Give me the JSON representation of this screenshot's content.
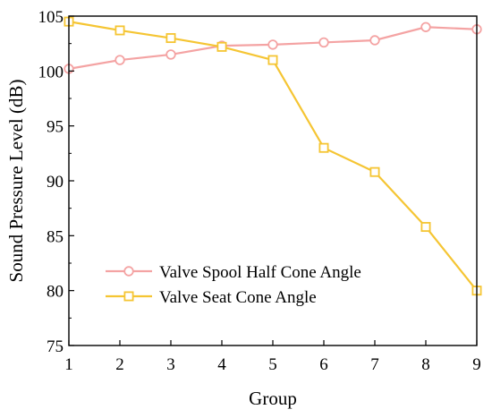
{
  "chart_data": {
    "type": "line",
    "xlabel": "Group",
    "ylabel": "Sound Pressure Level (dB)",
    "xlim": [
      1,
      9
    ],
    "ylim": [
      75,
      105
    ],
    "x": [
      1,
      2,
      3,
      4,
      5,
      6,
      7,
      8,
      9
    ],
    "xticks": [
      "1",
      "2",
      "3",
      "4",
      "5",
      "6",
      "7",
      "8",
      "9"
    ],
    "yticks": [
      "75",
      "80",
      "85",
      "90",
      "95",
      "100",
      "105"
    ],
    "grid": false,
    "legend_position": "bottom-left",
    "series": [
      {
        "name": "Valve Spool Half Cone Angle",
        "marker": "circle",
        "color": "#f4a3a3",
        "values": [
          100.2,
          101.0,
          101.5,
          102.3,
          102.4,
          102.6,
          102.8,
          104.0,
          103.8
        ]
      },
      {
        "name": "Valve Seat Cone Angle",
        "marker": "square",
        "color": "#f5c533",
        "values": [
          104.5,
          103.7,
          103.0,
          102.2,
          101.0,
          93.0,
          90.8,
          85.8,
          80.0
        ]
      }
    ]
  }
}
